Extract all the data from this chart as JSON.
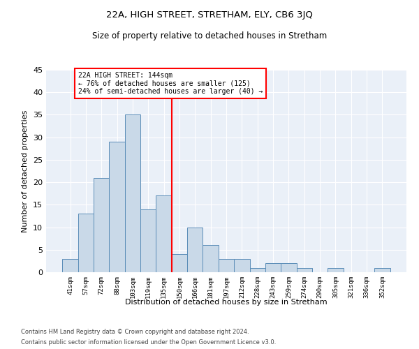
{
  "title": "22A, HIGH STREET, STRETHAM, ELY, CB6 3JQ",
  "subtitle": "Size of property relative to detached houses in Stretham",
  "xlabel": "Distribution of detached houses by size in Stretham",
  "ylabel": "Number of detached properties",
  "bin_labels": [
    "41sqm",
    "57sqm",
    "72sqm",
    "88sqm",
    "103sqm",
    "119sqm",
    "135sqm",
    "150sqm",
    "166sqm",
    "181sqm",
    "197sqm",
    "212sqm",
    "228sqm",
    "243sqm",
    "259sqm",
    "274sqm",
    "290sqm",
    "305sqm",
    "321sqm",
    "336sqm",
    "352sqm"
  ],
  "bar_heights": [
    3,
    13,
    21,
    29,
    35,
    14,
    17,
    4,
    10,
    6,
    3,
    3,
    1,
    2,
    2,
    1,
    0,
    1,
    0,
    0,
    1
  ],
  "bar_color": "#c9d9e8",
  "bar_edge_color": "#5b8db8",
  "vline_color": "red",
  "annotation_title": "22A HIGH STREET: 144sqm",
  "annotation_line1": "← 76% of detached houses are smaller (125)",
  "annotation_line2": "24% of semi-detached houses are larger (40) →",
  "annotation_box_color": "white",
  "annotation_box_edge": "red",
  "ylim": [
    0,
    45
  ],
  "yticks": [
    0,
    5,
    10,
    15,
    20,
    25,
    30,
    35,
    40,
    45
  ],
  "footnote1": "Contains HM Land Registry data © Crown copyright and database right 2024.",
  "footnote2": "Contains public sector information licensed under the Open Government Licence v3.0.",
  "plot_bg_color": "#eaf0f8",
  "grid_color": "#ffffff"
}
